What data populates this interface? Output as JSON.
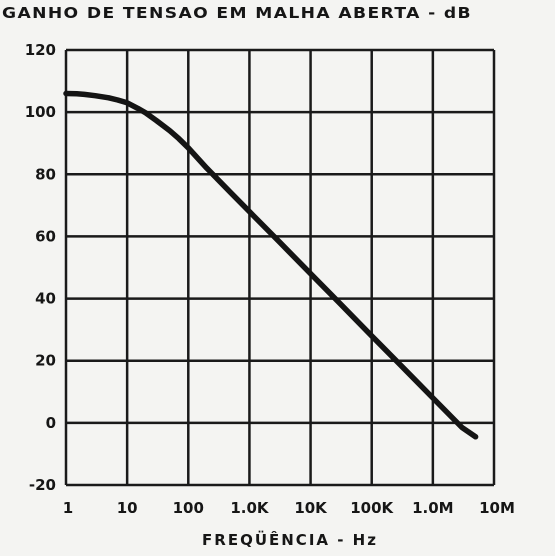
{
  "chart_data": {
    "type": "line",
    "title": "GANHO DE TENSAO EM MALHA ABERTA - dB",
    "xlabel": "FREQÜÊNCIA - Hz",
    "ylabel": "",
    "x_scale": "log",
    "xlim": [
      1,
      10000000
    ],
    "ylim": [
      -20,
      120
    ],
    "x_ticks": [
      {
        "value": 1,
        "label": "1"
      },
      {
        "value": 10,
        "label": "10"
      },
      {
        "value": 100,
        "label": "100"
      },
      {
        "value": 1000,
        "label": "1.0K"
      },
      {
        "value": 10000,
        "label": "10K"
      },
      {
        "value": 100000,
        "label": "100K"
      },
      {
        "value": 1000000,
        "label": "1.0M"
      },
      {
        "value": 10000000,
        "label": "10M"
      }
    ],
    "y_ticks": [
      {
        "value": 120,
        "label": "120"
      },
      {
        "value": 100,
        "label": "100"
      },
      {
        "value": 80,
        "label": "80"
      },
      {
        "value": 60,
        "label": "60"
      },
      {
        "value": 40,
        "label": "40"
      },
      {
        "value": 20,
        "label": "20"
      },
      {
        "value": 0,
        "label": "0"
      },
      {
        "value": -20,
        "label": "-20"
      }
    ],
    "grid": true,
    "legend": "none",
    "series": [
      {
        "x": [
          1,
          1.5,
          2,
          3,
          5,
          7,
          10,
          15,
          20,
          30,
          50,
          70,
          100,
          200,
          500,
          1000,
          3000,
          10000,
          30000,
          100000,
          300000,
          1000000,
          3000000,
          5000000
        ],
        "y": [
          106,
          105.9,
          105.7,
          105.3,
          104.6,
          103.9,
          103,
          101.2,
          99.8,
          97.3,
          94,
          91.5,
          88.5,
          82,
          74,
          68,
          58.5,
          48,
          38.5,
          28,
          18.5,
          8,
          -1.5,
          -4.5
        ]
      }
    ],
    "colors": {
      "line": "#141414",
      "grid": "#1a1a1a",
      "background": "#f4f4f2"
    }
  }
}
